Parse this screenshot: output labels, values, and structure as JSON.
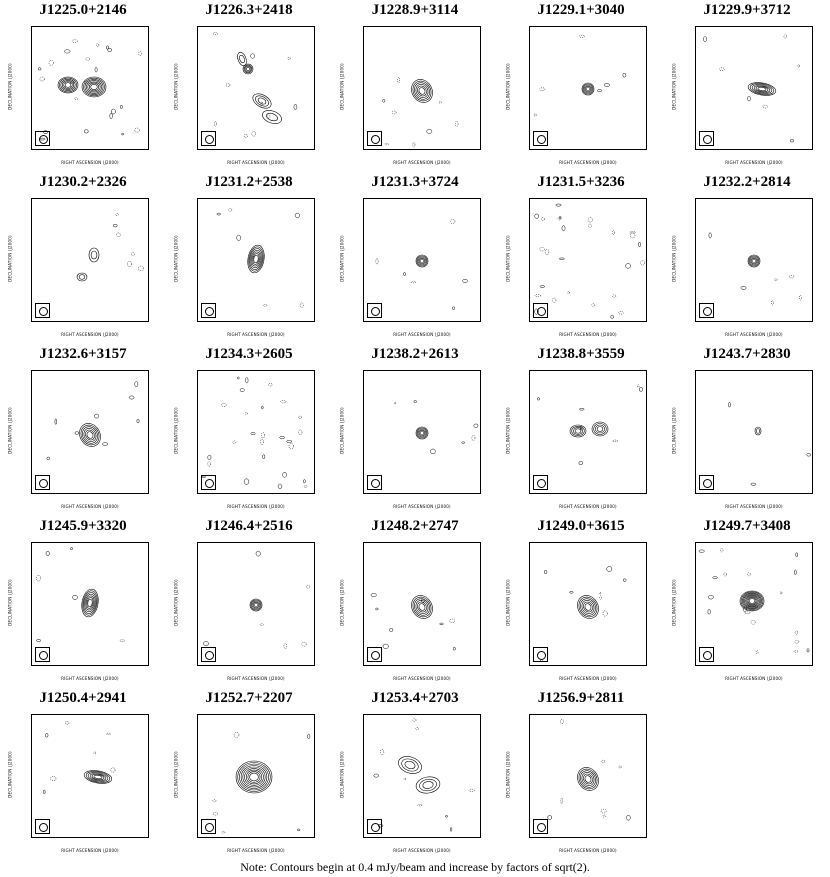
{
  "panels": [
    {
      "title": "J1225.0+2146",
      "ylabel": "DECLINATION (J2000)",
      "xlabel": "RIGHT ASCENSION (J2000)",
      "shape": "double"
    },
    {
      "title": "J1226.3+2418",
      "ylabel": "DECLINATION (J2000)",
      "xlabel": "RIGHT ASCENSION (J2000)",
      "shape": "jet"
    },
    {
      "title": "J1228.9+3114",
      "ylabel": "DECLINATION (J2000)",
      "xlabel": "RIGHT ASCENSION (J2000)",
      "shape": "blob"
    },
    {
      "title": "J1229.1+3040",
      "ylabel": "DECLINATION (J2000)",
      "xlabel": "RIGHT ASCENSION (J2000)",
      "shape": "compact"
    },
    {
      "title": "J1229.9+3712",
      "ylabel": "DECLINATION (J2000)",
      "xlabel": "RIGHT ASCENSION (J2000)",
      "shape": "elong"
    },
    {
      "title": "J1230.2+2326",
      "ylabel": "DECLINATION (J2000)",
      "xlabel": "RIGHT ASCENSION (J2000)",
      "shape": "faint"
    },
    {
      "title": "J1231.2+2538",
      "ylabel": "DECLINATION (J2000)",
      "xlabel": "RIGHT ASCENSION (J2000)",
      "shape": "vertical"
    },
    {
      "title": "J1231.3+3724",
      "ylabel": "DECLINATION (J2000)",
      "xlabel": "RIGHT ASCENSION (J2000)",
      "shape": "compact"
    },
    {
      "title": "J1231.5+3236",
      "ylabel": "DECLINATION (J2000)",
      "xlabel": "RIGHT ASCENSION (J2000)",
      "shape": "noise"
    },
    {
      "title": "J1232.2+2814",
      "ylabel": "DECLINATION (J2000)",
      "xlabel": "RIGHT ASCENSION (J2000)",
      "shape": "compact"
    },
    {
      "title": "J1232.6+3157",
      "ylabel": "DECLINATION (J2000)",
      "xlabel": "RIGHT ASCENSION (J2000)",
      "shape": "blob"
    },
    {
      "title": "J1234.3+2605",
      "ylabel": "DECLINATION (J2000)",
      "xlabel": "RIGHT ASCENSION (J2000)",
      "shape": "noise"
    },
    {
      "title": "J1238.2+2613",
      "ylabel": "DECLINATION (J2000)",
      "xlabel": "RIGHT ASCENSION (J2000)",
      "shape": "compact"
    },
    {
      "title": "J1238.8+3559",
      "ylabel": "DECLINATION (J2000)",
      "xlabel": "RIGHT ASCENSION (J2000)",
      "shape": "double-h"
    },
    {
      "title": "J1243.7+2830",
      "ylabel": "DECLINATION (J2000)",
      "xlabel": "RIGHT ASCENSION (J2000)",
      "shape": "tiny"
    },
    {
      "title": "J1245.9+3320",
      "ylabel": "DECLINATION (J2000)",
      "xlabel": "RIGHT ASCENSION (J2000)",
      "shape": "vertical"
    },
    {
      "title": "J1246.4+2516",
      "ylabel": "DECLINATION (J2000)",
      "xlabel": "RIGHT ASCENSION (J2000)",
      "shape": "compact"
    },
    {
      "title": "J1248.2+2747",
      "ylabel": "DECLINATION (J2000)",
      "xlabel": "RIGHT ASCENSION (J2000)",
      "shape": "blob"
    },
    {
      "title": "J1249.0+3615",
      "ylabel": "DECLINATION (J2000)",
      "xlabel": "RIGHT ASCENSION (J2000)",
      "shape": "blob"
    },
    {
      "title": "J1249.7+3408",
      "ylabel": "DECLINATION (J2000)",
      "xlabel": "RIGHT ASCENSION (J2000)",
      "shape": "bright"
    },
    {
      "title": "J1250.4+2941",
      "ylabel": "DECLINATION (J2000)",
      "xlabel": "RIGHT ASCENSION (J2000)",
      "shape": "elong"
    },
    {
      "title": "J1252.7+2207",
      "ylabel": "DECLINATION (J2000)",
      "xlabel": "RIGHT ASCENSION (J2000)",
      "shape": "large"
    },
    {
      "title": "J1253.4+2703",
      "ylabel": "DECLINATION (J2000)",
      "xlabel": "RIGHT ASCENSION (J2000)",
      "shape": "diffuse"
    },
    {
      "title": "J1256.9+2811",
      "ylabel": "DECLINATION (J2000)",
      "xlabel": "RIGHT ASCENSION (J2000)",
      "shape": "blob"
    }
  ],
  "note": "Note: Contours begin at 0.4 mJy/beam and increase by factors of sqrt(2)."
}
